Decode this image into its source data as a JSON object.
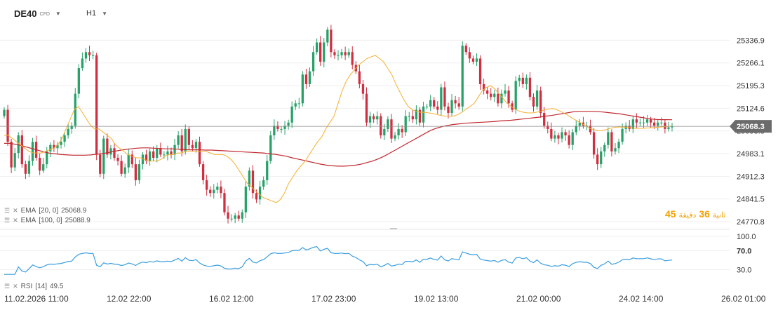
{
  "header": {
    "symbol": "DE40",
    "symbol_sub": "CFD",
    "timeframe": "H1"
  },
  "indicators": {
    "ema20_label": "EMA",
    "ema20_params": "[20, 0]",
    "ema20_value": "25068.9",
    "ema100_label": "EMA",
    "ema100_params": "[100, 0]",
    "ema100_value": "25088.9",
    "rsi_label": "RSI",
    "rsi_params": "[14]",
    "rsi_value": "49.5"
  },
  "countdown": {
    "min_value": "45",
    "min_unit": "ثانية",
    "sec_value": "36",
    "sec_unit": "دقيقة"
  },
  "colors": {
    "up": "#26a269",
    "down": "#d12e40",
    "ema20": "#f5b031",
    "ema100": "#c0282e",
    "rsi": "#3a9ee0",
    "price_tag": "#6b6b6b"
  },
  "icons": {
    "legend_menu": "lines-icon",
    "legend_close": "close-icon",
    "dropdown": "caret-down-icon"
  },
  "chart_data": {
    "type": "candlestick",
    "current_price": 25068.3,
    "current_price_label": "25068.3",
    "y_ticks": [
      25336.9,
      25266.1,
      25195.3,
      25124.6,
      25053.8,
      24983.1,
      24912.3,
      24841.5,
      24770.8
    ],
    "y_tick_labels": [
      "25336.9",
      "25266.1",
      "25195.3",
      "25124.6",
      "25053.8",
      "24983.1",
      "24912.3",
      "24841.5",
      "24770.8"
    ],
    "ylim": [
      24762,
      25375
    ],
    "rsi_ticks": [
      100,
      70,
      30
    ],
    "rsi_tick_labels": [
      "100.0",
      "70.0",
      "30.0"
    ],
    "x_tick_labels": [
      "11.02.2026 11:00",
      "12.02 22:00",
      "16.02 12:00",
      "17.02 23:00",
      "19.02 13:00",
      "21.02 00:00",
      "24.02 14:00",
      "26.02 01:00"
    ],
    "candles_close": [
      25120,
      25020,
      24940,
      24985,
      25040,
      24950,
      24920,
      24960,
      25020,
      24970,
      24930,
      24950,
      24990,
      25010,
      25000,
      25010,
      25020,
      25040,
      25060,
      25070,
      25170,
      25250,
      25280,
      25300,
      25290,
      25290,
      24980,
      24920,
      25030,
      24980,
      25000,
      24970,
      24960,
      24920,
      24940,
      24980,
      24950,
      24900,
      24950,
      24980,
      24960,
      24990,
      24970,
      25000,
      24980,
      24980,
      24990,
      24980,
      25010,
      25040,
      24990,
      25060,
      25010,
      25000,
      25020,
      24950,
      24900,
      24870,
      24860,
      24870,
      24880,
      24860,
      24800,
      24780,
      24780,
      24790,
      24780,
      24800,
      24880,
      24930,
      24860,
      24840,
      24880,
      24900,
      24960,
      25040,
      25070,
      25060,
      25060,
      25070,
      25080,
      25130,
      25140,
      25140,
      25230,
      25200,
      25240,
      25300,
      25330,
      25270,
      25330,
      25370,
      25300,
      25290,
      25290,
      25300,
      25290,
      25300,
      25260,
      25240,
      25200,
      25170,
      25080,
      25100,
      25090,
      25100,
      25040,
      25060,
      25090,
      25030,
      25040,
      25060,
      25050,
      25100,
      25100,
      25090,
      25120,
      25080,
      25130,
      25130,
      25150,
      25130,
      25120,
      25190,
      25130,
      25110,
      25150,
      25140,
      25130,
      25320,
      25300,
      25280,
      25270,
      25280,
      25200,
      25180,
      25170,
      25160,
      25170,
      25140,
      25170,
      25180,
      25140,
      25120,
      25210,
      25220,
      25200,
      25220,
      25160,
      25130,
      25180,
      25110,
      25070,
      25060,
      25030,
      25040,
      25030,
      25050,
      25040,
      25010,
      25050,
      25070,
      25080,
      25070,
      25070,
      25050,
      24980,
      24950,
      24990,
      25010,
      25050,
      24990,
      25000,
      25020,
      25060,
      25070,
      25060,
      25090,
      25080,
      25080,
      25080,
      25090,
      25080,
      25070,
      25080,
      25080,
      25060,
      25065,
      25068.3
    ],
    "ema20": [
      25040,
      25040,
      25030,
      25020,
      25010,
      25000,
      24990,
      24985,
      24985,
      24985,
      24990,
      24995,
      25000,
      25010,
      25030,
      25060,
      25090,
      25120,
      25130,
      25110,
      25090,
      25070,
      25060,
      25060,
      25050,
      25040,
      25030,
      25010,
      25000,
      24990,
      24980,
      24975,
      24970,
      24970,
      24965,
      24960,
      24960,
      24960,
      24965,
      24975,
      24980,
      24980,
      24985,
      24985,
      24990,
      24990,
      24990,
      24990,
      24990,
      24990,
      24985,
      24980,
      24980,
      24980,
      24975,
      24965,
      24950,
      24930,
      24910,
      24890,
      24880,
      24865,
      24855,
      24845,
      24840,
      24835,
      24830,
      24840,
      24860,
      24890,
      24910,
      24930,
      24945,
      24960,
      24980,
      25000,
      25020,
      25035,
      25060,
      25080,
      25100,
      25140,
      25180,
      25210,
      25230,
      25245,
      25260,
      25270,
      25280,
      25285,
      25290,
      25280,
      25270,
      25250,
      25230,
      25200,
      25175,
      25150,
      25130,
      25120,
      25115,
      25112,
      25112,
      25110,
      25108,
      25105,
      25102,
      25100,
      25100,
      25100,
      25105,
      25112,
      25122,
      25130,
      25140,
      25160,
      25180,
      25190,
      25195,
      25185,
      25170,
      25155,
      25140,
      25130,
      25122,
      25115,
      25112,
      25110,
      25110,
      25112,
      25115,
      25120,
      25122,
      25124,
      25120,
      25115,
      25108,
      25100,
      25092,
      25085,
      25078,
      25070,
      25062,
      25058,
      25055,
      25055,
      25058,
      25062,
      25065,
      25066,
      25066,
      25065,
      25064,
      25062,
      25062,
      25062,
      25063,
      25064,
      25065,
      25066,
      25067,
      25068,
      25068.9
    ],
    "ema100": [
      25015,
      25015,
      25012,
      25008,
      25003,
      24998,
      24993,
      24988,
      24984,
      24982,
      24980,
      24979,
      24978,
      24978,
      24978,
      24979,
      24981,
      24983,
      24986,
      24990,
      24993,
      24996,
      24998,
      25000,
      25001,
      25001,
      25000,
      24999,
      24998,
      24998,
      24997,
      24996,
      24995,
      24995,
      24995,
      24994,
      24994,
      24993,
      24992,
      24991,
      24990,
      24989,
      24988,
      24987,
      24986,
      24985,
      24983,
      24981,
      24978,
      24975,
      24970,
      24966,
      24962,
      24958,
      24954,
      24950,
      24947,
      24945,
      24944,
      24944,
      24945,
      24947,
      24950,
      24955,
      24960,
      24967,
      24975,
      24985,
      24995,
      25005,
      25015,
      25025,
      25035,
      25045,
      25055,
      25062,
      25067,
      25071,
      25074,
      25076,
      25078,
      25079,
      25080,
      25081,
      25082,
      25083,
      25085,
      25086,
      25087,
      25089,
      25091,
      25093,
      25095,
      25097,
      25100,
      25102,
      25105,
      25108,
      25111,
      25114,
      25115,
      25115,
      25115,
      25114,
      25113,
      25111,
      25109,
      25107,
      25104,
      25101,
      25098,
      25095,
      25092,
      25090,
      25089,
      25089,
      25088.9
    ]
  }
}
